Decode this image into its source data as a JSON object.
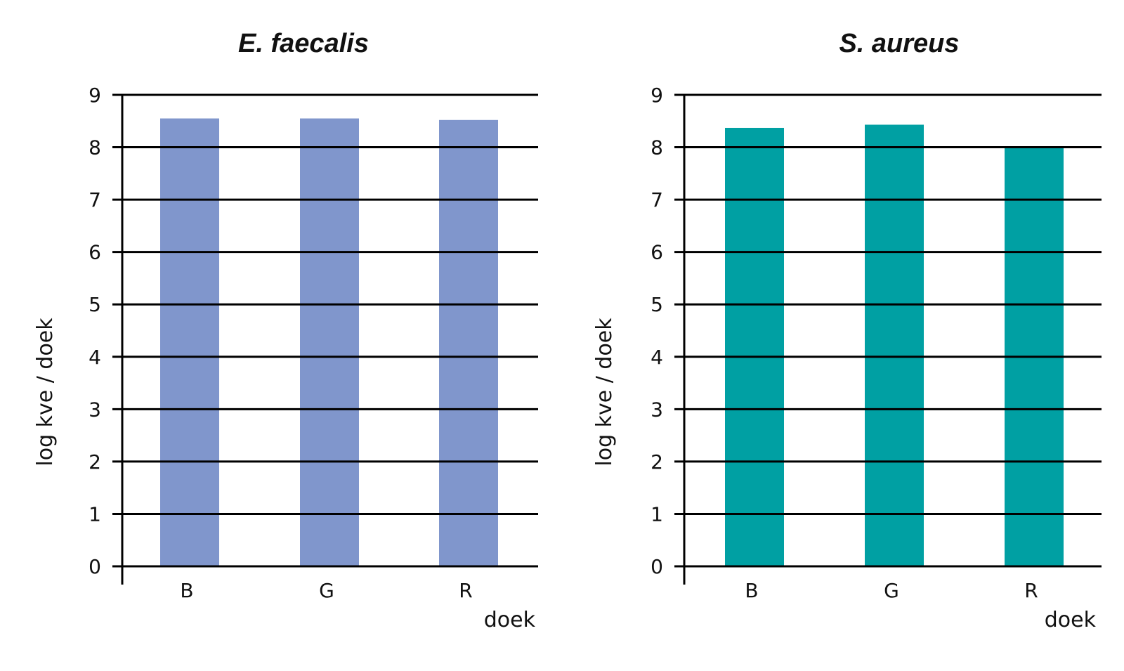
{
  "chart_data": [
    {
      "type": "bar",
      "title": "E. faecalis",
      "xlabel": "doek",
      "ylabel": "log kve / doek",
      "categories": [
        "B",
        "G",
        "R"
      ],
      "values": [
        8.55,
        8.55,
        8.52
      ],
      "ylim": [
        0,
        9
      ],
      "yticks": [
        "0",
        "1",
        "2",
        "3",
        "4",
        "5",
        "6",
        "7",
        "8",
        "9"
      ],
      "grid": true,
      "color": "#8096cc"
    },
    {
      "type": "bar",
      "title": "S. aureus",
      "xlabel": "doek",
      "ylabel": "log kve / doek",
      "categories": [
        "B",
        "G",
        "R"
      ],
      "values": [
        8.37,
        8.43,
        8.0
      ],
      "ylim": [
        0,
        9
      ],
      "yticks": [
        "0",
        "1",
        "2",
        "3",
        "4",
        "5",
        "6",
        "7",
        "8",
        "9"
      ],
      "grid": true,
      "color": "#00a0a3"
    }
  ]
}
